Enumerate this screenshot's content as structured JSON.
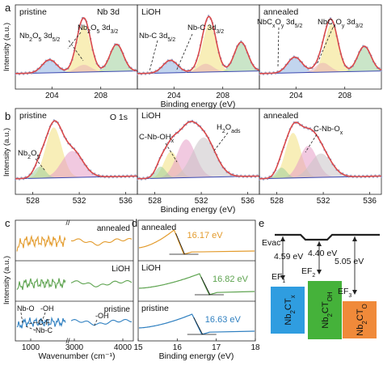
{
  "figure": {
    "panel_letters": [
      "a",
      "b",
      "c",
      "d",
      "e"
    ],
    "colors": {
      "envelope": "#d8484a",
      "data_points": "#9aa6c8",
      "background_line": "#3a47b0",
      "nb2o5_fill": "#f3e07e",
      "nbc_fill": "#e9b2b4",
      "nb3d_green_fill": "#9fcf9b",
      "nb3d_blue_fill": "#8fb2e0",
      "o_pink_fill": "#e59cc6",
      "o_grey_fill": "#c9c3c6",
      "annealed_ftir": "#e39b2c",
      "lioh_ftir": "#5da34f",
      "pristine_ftir": "#2e7fc0",
      "vacuum_level": "#222222",
      "box_F1": "#2f9de0",
      "box_F2": "#45b23a",
      "box_F3": "#f08a3a"
    }
  },
  "chart_data": [
    {
      "id": "a",
      "type": "line",
      "element_label": "Nb 3d",
      "xlabel": "Binding energy (eV)",
      "ylabel": "Intensity (a.u.)",
      "xticks": [
        "204",
        "208",
        "204",
        "208",
        "204",
        "208"
      ],
      "panels": [
        {
          "name": "pristine",
          "xlim": [
            201,
            211
          ],
          "annotations": [
            "Nb2O5 3d5/2",
            "Nb2O5 3d3/2"
          ],
          "peaks": [
            {
              "component": "nb2o5_3d5",
              "center": 206.6,
              "height": 0.9,
              "width": 0.55
            },
            {
              "component": "nb2o5_3d3",
              "center": 209.3,
              "height": 0.52,
              "width": 0.55
            },
            {
              "component": "nbc_3d5",
              "center": 203.8,
              "height": 0.25,
              "width": 0.6
            },
            {
              "component": "nbc_3d3",
              "center": 206.6,
              "height": 0.14,
              "width": 0.6
            }
          ]
        },
        {
          "name": "LiOH",
          "xlim": [
            201,
            211
          ],
          "annotations": [
            "Nb-C 3d5/2",
            "Nb-C 3d3/2"
          ],
          "peaks": [
            {
              "component": "nb2o5_3d5",
              "center": 206.9,
              "height": 0.92,
              "width": 0.55
            },
            {
              "component": "nb2o5_3d3",
              "center": 209.5,
              "height": 0.56,
              "width": 0.55
            },
            {
              "component": "nbc_3d5",
              "center": 203.7,
              "height": 0.24,
              "width": 0.6
            },
            {
              "component": "nbc_3d3",
              "center": 206.6,
              "height": 0.16,
              "width": 0.6
            }
          ]
        },
        {
          "name": "annealed",
          "xlim": [
            201,
            211
          ],
          "annotations": [
            "NbCxOy 3d5/2",
            "NbCxOy 3d3/2"
          ],
          "peaks": [
            {
              "component": "nb2o5_3d5",
              "center": 206.9,
              "height": 0.92,
              "width": 0.55
            },
            {
              "component": "nb2o5_3d3",
              "center": 209.6,
              "height": 0.48,
              "width": 0.55
            },
            {
              "component": "nbc_3d5",
              "center": 203.9,
              "height": 0.3,
              "width": 0.6
            },
            {
              "component": "nbc_3d3",
              "center": 206.2,
              "height": 0.18,
              "width": 0.6
            }
          ]
        }
      ]
    },
    {
      "id": "b",
      "type": "line",
      "element_label": "O 1s",
      "xlabel": "Binding energy (eV)",
      "ylabel": "Intensity (a.u.)",
      "xticks": [
        "528",
        "532",
        "536",
        "528",
        "532",
        "536",
        "528",
        "532",
        "536"
      ],
      "panels": [
        {
          "name": "pristine",
          "xlim": [
            526.5,
            537
          ],
          "annotations": [
            "Nb2O5"
          ],
          "peaks": [
            {
              "component": "o_yellow",
              "center": 529.8,
              "height": 0.95,
              "width": 0.7
            },
            {
              "component": "o_pink",
              "center": 531.4,
              "height": 0.5,
              "width": 0.9
            },
            {
              "component": "o_green",
              "center": 528.6,
              "height": 0.22,
              "width": 0.5
            }
          ]
        },
        {
          "name": "LiOH",
          "xlim": [
            526.5,
            537
          ],
          "annotations": [
            "C-Nb-OHx",
            "H2Oads"
          ],
          "peaks": [
            {
              "component": "o_yellow",
              "center": 529.4,
              "height": 0.5,
              "width": 0.6
            },
            {
              "component": "o_pink",
              "center": 530.7,
              "height": 0.72,
              "width": 0.8
            },
            {
              "component": "o_grey",
              "center": 532.2,
              "height": 0.75,
              "width": 1.0
            },
            {
              "component": "o_green",
              "center": 528.5,
              "height": 0.22,
              "width": 0.45
            }
          ]
        },
        {
          "name": "annealed",
          "xlim": [
            526.5,
            537
          ],
          "annotations": [
            "C-Nb-Ox"
          ],
          "peaks": [
            {
              "component": "o_yellow",
              "center": 529.4,
              "height": 0.85,
              "width": 0.65
            },
            {
              "component": "o_pink",
              "center": 530.7,
              "height": 0.6,
              "width": 0.75
            },
            {
              "component": "o_grey",
              "center": 531.8,
              "height": 0.45,
              "width": 0.9
            },
            {
              "component": "o_green",
              "center": 528.4,
              "height": 0.2,
              "width": 0.45
            }
          ]
        }
      ]
    },
    {
      "id": "c",
      "type": "line",
      "xlabel": "Wavenumber (cm⁻¹)",
      "ylabel": "Intensity (a.u.)",
      "xticks": [
        "1000",
        "3000",
        "4000"
      ],
      "series": [
        {
          "name": "annealed",
          "color_key": "annealed_ftir"
        },
        {
          "name": "LiOH",
          "color_key": "lioh_ftir"
        },
        {
          "name": "pristine",
          "color_key": "pristine_ftir"
        }
      ],
      "annotations": [
        "Nb-O",
        "-OH",
        "-C-F",
        "Nb-C",
        "-OH"
      ]
    },
    {
      "id": "d",
      "type": "line",
      "xlabel": "Binding energy (eV)",
      "xlim": [
        15,
        18
      ],
      "xticks": [
        "15",
        "16",
        "17",
        "18"
      ],
      "series": [
        {
          "name": "annealed",
          "cutoff": 16.17,
          "label": "16.17 eV",
          "color_key": "annealed_ftir"
        },
        {
          "name": "LiOH",
          "cutoff": 16.82,
          "label": "16.82 eV",
          "color_key": "lioh_ftir"
        },
        {
          "name": "pristine",
          "cutoff": 16.63,
          "label": "16.63 eV",
          "color_key": "pristine_ftir"
        }
      ]
    },
    {
      "id": "e",
      "type": "diagram",
      "vacuum_label": "Evac",
      "levels": [
        {
          "label": "EF1",
          "work_function": "4.59 eV",
          "material": "Nb2CTx",
          "color_key": "box_F1"
        },
        {
          "label": "EF2",
          "work_function": "4.40 eV",
          "material": "Nb2CTOH",
          "color_key": "box_F2"
        },
        {
          "label": "EF3",
          "work_function": "5.05 eV",
          "material": "Nb2CTO",
          "color_key": "box_F3"
        }
      ]
    }
  ]
}
